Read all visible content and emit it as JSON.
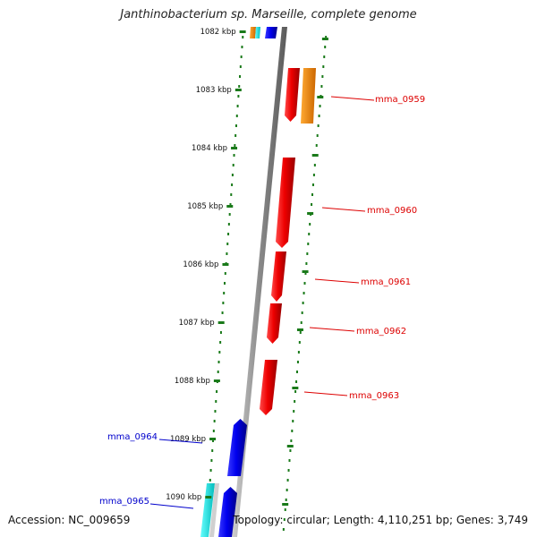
{
  "title": "Janthinobacterium sp. Marseille, complete genome",
  "accession": "Accession: NC_009659",
  "summary": "Topology: circular; Length: 4,110,251 bp; Genes: 3,749",
  "ticks": [
    "1082 kbp",
    "1083 kbp",
    "1084 kbp",
    "1085 kbp",
    "1086 kbp",
    "1087 kbp",
    "1088 kbp",
    "1089 kbp",
    "1090 kbp"
  ],
  "genes": [
    {
      "label": "mma_0959",
      "color": "#dd0000",
      "strand": "plus"
    },
    {
      "label": "mma_0960",
      "color": "#dd0000",
      "strand": "plus"
    },
    {
      "label": "mma_0961",
      "color": "#dd0000",
      "strand": "plus"
    },
    {
      "label": "mma_0962",
      "color": "#dd0000",
      "strand": "plus"
    },
    {
      "label": "mma_0963",
      "color": "#dd0000",
      "strand": "plus"
    },
    {
      "label": "mma_0964",
      "color": "#0000cc",
      "strand": "minus"
    },
    {
      "label": "mma_0965",
      "color": "#0000cc",
      "strand": "minus"
    }
  ],
  "colors": {
    "forward": "#dd0000",
    "reverse": "#0000cc",
    "backbone": "#888888",
    "ticks": "#1a7a1a",
    "orange": "#ff8800",
    "cyan": "#00dddd"
  }
}
